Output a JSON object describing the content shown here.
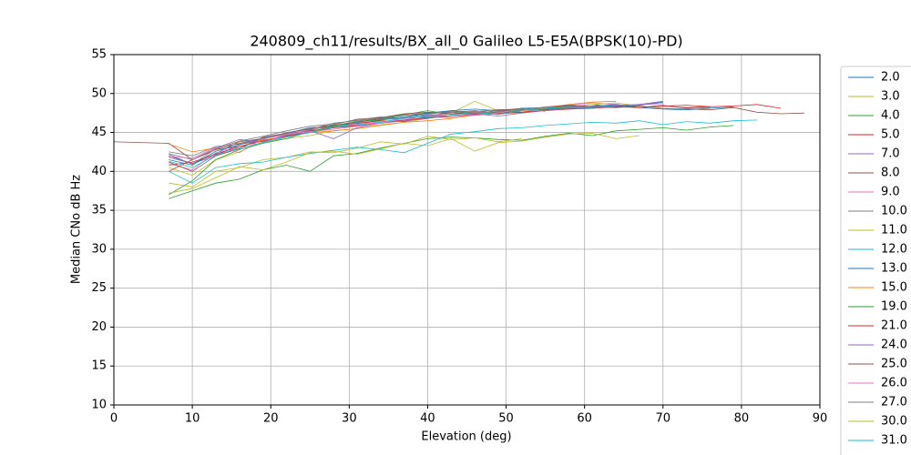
{
  "chart_data": {
    "type": "line",
    "title": "240809_ch11/results/BX_all_0 Galileo L5-E5A(BPSK(10)-PD)",
    "x_label": "Elevation (deg)",
    "y_label": "Median CNo dB Hz",
    "xlim": [
      0,
      90
    ],
    "xticks": [
      0,
      10,
      20,
      30,
      40,
      50,
      60,
      70,
      80,
      90
    ],
    "ylim": [
      10,
      55
    ],
    "yticks": [
      10,
      15,
      20,
      25,
      30,
      35,
      40,
      45,
      50,
      55
    ],
    "grid": true,
    "legend": "outside-right",
    "x": [
      0,
      7,
      10,
      13,
      16,
      19,
      22,
      25,
      28,
      31,
      34,
      37,
      40,
      43,
      46,
      49,
      52,
      55,
      58,
      61,
      64,
      67,
      70,
      73,
      76,
      79,
      82,
      85,
      88
    ],
    "series": [
      {
        "name": "2.0",
        "color": "#1f77b4",
        "values": [
          null,
          42,
          41,
          42.3,
          43.8,
          44.2,
          44.8,
          45.3,
          45.9,
          46.1,
          46.6,
          46.9,
          47.3,
          47.8,
          47.5,
          47.7,
          48.1,
          47.9,
          48.3,
          48.6,
          48.2,
          48.5,
          48.9,
          null,
          null,
          null,
          null,
          null,
          null
        ]
      },
      {
        "name": "3.0",
        "color": "#bcbd22",
        "values": [
          null,
          40.5,
          39.5,
          41.5,
          42.5,
          43.8,
          44.2,
          44.6,
          45.2,
          45.5,
          46,
          46.3,
          46.8,
          47.5,
          49,
          47.8,
          47.5,
          48,
          48.3,
          48.6,
          48.8,
          48.4,
          null,
          null,
          null,
          null,
          null,
          null,
          null
        ]
      },
      {
        "name": "4.0",
        "color": "#2ca02c",
        "values": [
          null,
          36.5,
          37.5,
          38.5,
          39,
          40.2,
          40.8,
          40,
          42,
          42.3,
          43,
          43.6,
          44.2,
          44.4,
          44.3,
          44.1,
          44,
          44.5,
          44.9,
          44.6,
          45.2,
          45.4,
          45.6,
          45.3,
          45.7,
          45.9,
          null,
          null,
          null
        ]
      },
      {
        "name": "5.0",
        "color": "#d62728",
        "values": [
          null,
          40,
          41.5,
          42.8,
          43.2,
          44,
          44.5,
          45.2,
          45.6,
          46.2,
          46.5,
          46.4,
          47,
          47.2,
          47.5,
          47.4,
          47.6,
          48.2,
          48.5,
          48.3,
          48.6,
          48.2,
          48.4,
          48.5,
          48.3,
          null,
          null,
          null,
          null
        ]
      },
      {
        "name": "7.0",
        "color": "#9467bd",
        "values": [
          null,
          41.8,
          41,
          42,
          43.5,
          43.9,
          44.6,
          45,
          45.6,
          45.8,
          46.2,
          46.8,
          47.1,
          47.4,
          47.6,
          47.6,
          47.9,
          48.2,
          48,
          48.4,
          48.5,
          48.6,
          48.7,
          null,
          null,
          null,
          null,
          null,
          null
        ]
      },
      {
        "name": "8.0",
        "color": "#8c564b",
        "values": [
          43.8,
          43.6,
          41.5,
          42.8,
          43.6,
          44.2,
          44.7,
          45.3,
          45.9,
          46.4,
          46.8,
          47.2,
          47.5,
          47.6,
          47.8,
          47.5,
          47.6,
          47.9,
          48.1,
          48.3,
          48.2,
          48.4,
          48.1,
          48,
          47.9,
          48.2,
          47.6,
          47.4,
          47.5
        ]
      },
      {
        "name": "9.0",
        "color": "#e377c2",
        "values": [
          null,
          41,
          40.2,
          42.4,
          43,
          44.3,
          44.6,
          45.4,
          45.7,
          46.1,
          46.4,
          46.6,
          47.2,
          47.4,
          47.3,
          47.5,
          47.8,
          48.3,
          48.5,
          48.8,
          48.6,
          null,
          null,
          null,
          null,
          null,
          null,
          null,
          null
        ]
      },
      {
        "name": "10.0",
        "color": "#7f7f7f",
        "values": [
          null,
          42.5,
          42,
          43.2,
          43.5,
          44.1,
          45,
          45.4,
          46.2,
          46.5,
          46.9,
          47.3,
          47.1,
          47.6,
          47.3,
          47.9,
          47.6,
          48,
          48.2,
          48.1,
          48.4,
          48.2,
          48.5,
          48.1,
          48.2,
          null,
          null,
          null,
          null
        ]
      },
      {
        "name": "11.0",
        "color": "#bcbd22",
        "values": [
          null,
          38.5,
          38,
          40,
          40.5,
          41.5,
          41.8,
          42.5,
          42.4,
          43,
          43.8,
          43.5,
          44.5,
          44.1,
          44.3,
          43.8,
          44.2,
          null,
          null,
          null,
          null,
          null,
          null,
          null,
          null,
          null,
          null,
          null,
          null
        ]
      },
      {
        "name": "12.0",
        "color": "#17becf",
        "values": [
          null,
          40,
          38.5,
          40.5,
          41,
          41.2,
          41.8,
          42.3,
          42.7,
          43.1,
          42.8,
          42.4,
          43.6,
          44.8,
          45.1,
          45.5,
          45.6,
          45.9,
          46.1,
          46.3,
          46.2,
          46.5,
          46,
          46.4,
          46.2,
          46.5,
          46.6,
          null,
          null
        ]
      },
      {
        "name": "13.0",
        "color": "#1f77b4",
        "values": [
          null,
          41.5,
          40.8,
          42.6,
          43.4,
          44.3,
          44.9,
          45.6,
          45.8,
          46.3,
          46.7,
          47,
          47.5,
          47.8,
          48,
          47.8,
          48.1,
          48.2,
          48.4,
          48.3,
          48.6,
          48.2,
          48,
          47.9,
          48.1,
          48.3,
          null,
          null,
          null
        ]
      },
      {
        "name": "15.0",
        "color": "#ff7f0e",
        "values": [
          null,
          43.5,
          42.5,
          43,
          43.8,
          44,
          44.5,
          45,
          45.2,
          45.5,
          45.9,
          46.3,
          46.5,
          46.8,
          47.2,
          47.4,
          47.6,
          48.2,
          48.6,
          48.9,
          49,
          null,
          null,
          null,
          null,
          null,
          null,
          null,
          null
        ]
      },
      {
        "name": "19.0",
        "color": "#2ca02c",
        "values": [
          null,
          37,
          38.8,
          41.5,
          42.8,
          43.6,
          44.2,
          45.1,
          45.8,
          46.4,
          46.6,
          47.3,
          47.8,
          47.3,
          47.6,
          47.4,
          47.9,
          48,
          48.3,
          48.1,
          null,
          null,
          null,
          null,
          null,
          null,
          null,
          null,
          null
        ]
      },
      {
        "name": "21.0",
        "color": "#d62728",
        "values": [
          null,
          40.8,
          41.2,
          42.2,
          43.2,
          43.9,
          44.5,
          45,
          45.6,
          45.9,
          46.2,
          46.6,
          46.9,
          47,
          47.3,
          47.4,
          47.6,
          47.8,
          48,
          48.1,
          48.3,
          48.2,
          48.4,
          48.2,
          48.3,
          48.4,
          48.6,
          48.1,
          null
        ]
      },
      {
        "name": "24.0",
        "color": "#9467bd",
        "values": [
          null,
          42.3,
          41.5,
          43,
          44.1,
          43.8,
          44.6,
          45.2,
          44.2,
          45.6,
          46.2,
          46.5,
          46.8,
          47.2,
          47.4,
          47.1,
          47.5,
          47.8,
          48.1,
          48.2,
          48.4,
          48.6,
          49,
          null,
          null,
          null,
          null,
          null,
          null
        ]
      },
      {
        "name": "25.0",
        "color": "#8c564b",
        "values": [
          null,
          41.2,
          40,
          42,
          42.9,
          44.4,
          44.9,
          45.5,
          46,
          46.7,
          46.9,
          47.4,
          47.6,
          47.4,
          47.7,
          47.9,
          48,
          48.2,
          48.5,
          48.3,
          null,
          null,
          null,
          null,
          null,
          null,
          null,
          null,
          null
        ]
      },
      {
        "name": "26.0",
        "color": "#e377c2",
        "values": [
          null,
          41.9,
          41.7,
          43.1,
          42.4,
          44.2,
          44.8,
          45.1,
          45.4,
          45.8,
          46.2,
          46.8,
          47,
          47.4,
          47.2,
          47.5,
          48,
          47.7,
          null,
          null,
          null,
          null,
          null,
          null,
          null,
          null,
          null,
          null,
          null
        ]
      },
      {
        "name": "27.0",
        "color": "#7f7f7f",
        "values": [
          null,
          42.2,
          40.9,
          42.9,
          43.9,
          44.5,
          45.2,
          45.8,
          46.1,
          46.6,
          47,
          46.8,
          47.4,
          47.7,
          47.5,
          47.7,
          48,
          48.2,
          48.3,
          null,
          null,
          null,
          null,
          null,
          null,
          null,
          null,
          null,
          null
        ]
      },
      {
        "name": "30.0",
        "color": "#bcbd22",
        "values": [
          null,
          37.2,
          37.8,
          39.2,
          40.6,
          40.2,
          41.2,
          42.4,
          42.6,
          42.2,
          42.9,
          43.6,
          43.3,
          44.2,
          42.6,
          43.7,
          43.9,
          44.4,
          44.8,
          44.9,
          44.2,
          44.6,
          null,
          null,
          null,
          null,
          null,
          null,
          null
        ]
      },
      {
        "name": "31.0",
        "color": "#17becf",
        "values": [
          null,
          41.3,
          40.5,
          42.1,
          43,
          43.7,
          44.4,
          45,
          45.7,
          46,
          46.3,
          46.9,
          47,
          47.2,
          47.6,
          47.3,
          47.8,
          48.1,
          48.3,
          48.2,
          48.5,
          null,
          null,
          null,
          null,
          null,
          null,
          null,
          null
        ]
      }
    ]
  }
}
